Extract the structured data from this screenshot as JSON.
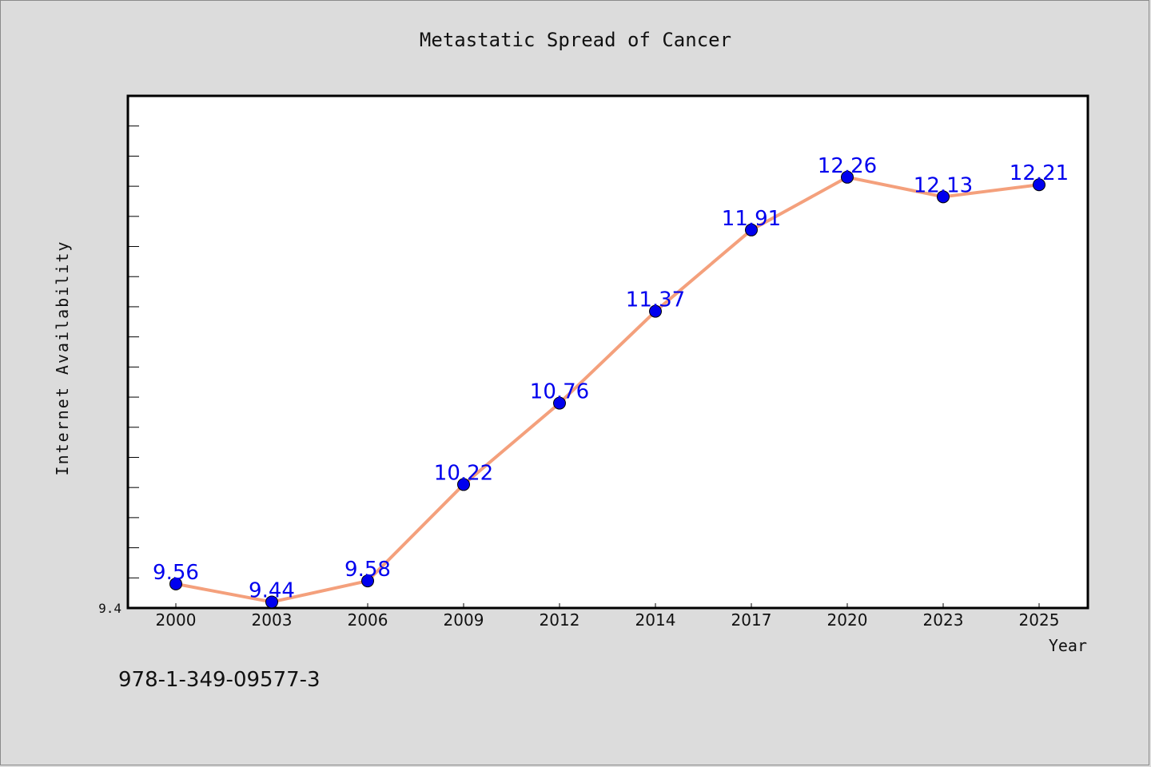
{
  "chart_data": {
    "type": "line",
    "title": "Metastatic Spread of Cancer",
    "xlabel": "Year",
    "ylabel": "Internet Availability",
    "categories": [
      "2000",
      "2003",
      "2006",
      "2009",
      "2012",
      "2014",
      "2017",
      "2020",
      "2023",
      "2025"
    ],
    "series": [
      {
        "values": [
          9.56,
          9.44,
          9.58,
          10.22,
          10.76,
          11.37,
          11.91,
          12.26,
          12.13,
          12.21
        ],
        "line_color": "#f4a07c",
        "marker_color": "#0000ee"
      }
    ],
    "data_labels": [
      "9.56",
      "9.44",
      "9.58",
      "10.22",
      "10.76",
      "11.37",
      "11.91",
      "12.26",
      "12.13",
      "12.21"
    ],
    "y_tick_labels": [
      "9.4"
    ],
    "ylim": [
      9.4,
      12.8
    ],
    "grid": false,
    "legend": "none"
  },
  "footnote": "978-1-349-09577-3"
}
